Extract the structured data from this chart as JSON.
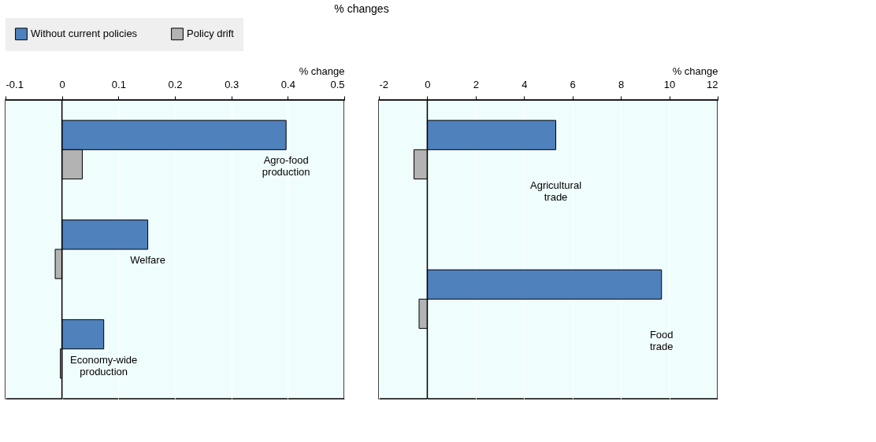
{
  "chart_data": [
    {
      "type": "bar",
      "orientation": "horizontal",
      "title": "% changes",
      "xlabel": "% change",
      "categories": [
        "Agro-food production",
        "Welfare",
        "Economy-wide production"
      ],
      "series": [
        {
          "name": "Without current policies",
          "color": "#4f81bd",
          "values": [
            0.397,
            0.152,
            0.074
          ]
        },
        {
          "name": "Policy drift",
          "color": "#b3b3b3",
          "values": [
            0.036,
            -0.012,
            -0.003
          ]
        }
      ],
      "xlim": [
        -0.1,
        0.5
      ],
      "xticks": [
        -0.1,
        0,
        0.1,
        0.2,
        0.3,
        0.4,
        0.5
      ],
      "grid": true,
      "legend": "top"
    },
    {
      "type": "bar",
      "orientation": "horizontal",
      "xlabel": "% change",
      "categories": [
        "Agricultural trade",
        "Food trade"
      ],
      "series": [
        {
          "name": "Without current policies",
          "color": "#4f81bd",
          "values": [
            5.31,
            9.68
          ]
        },
        {
          "name": "Policy drift",
          "color": "#b3b3b3",
          "values": [
            -0.55,
            -0.34
          ]
        }
      ],
      "xlim": [
        -2,
        12
      ],
      "xticks": [
        -2,
        0,
        2,
        4,
        6,
        8,
        10,
        12
      ],
      "grid": true,
      "legend": "top"
    }
  ]
}
